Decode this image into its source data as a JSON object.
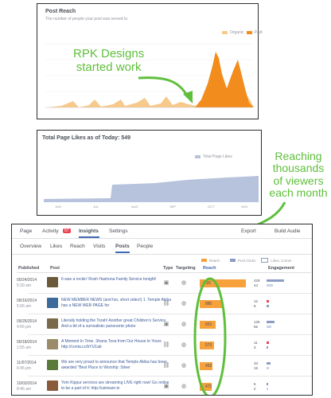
{
  "reach_chart": {
    "title": "Post Reach",
    "subtitle": "The number of people your post was served to.",
    "legend": [
      {
        "label": "Organic",
        "color": "#f7c98b"
      },
      {
        "label": "Paid",
        "color": "#f28c1c"
      }
    ],
    "colors": {
      "organic": "#f7c98b",
      "paid": "#f28c1c"
    }
  },
  "likes_chart": {
    "title": "Total Page Likes as of Today: 549",
    "legend": [
      {
        "label": "Total Page Likes",
        "color": "#b7c3dc"
      }
    ],
    "x_labels": [
      "JUN",
      "JUL",
      "AUG",
      "SEP",
      "OCT",
      "NOV"
    ],
    "colors": {
      "area": "#b7c3dc"
    }
  },
  "callouts": {
    "rpk": [
      "RPK Designs",
      "started work"
    ],
    "reaching": [
      "Reaching",
      "thousands",
      "of viewers",
      "each month"
    ]
  },
  "insights": {
    "top_tabs": {
      "page": "Page",
      "activity": "Activity",
      "activity_badge": "57",
      "likes": "Likes",
      "insights": "Insights",
      "settings": "Settings",
      "export": "Export",
      "build": "Build Audie"
    },
    "sub_tabs": [
      "Overview",
      "Likes",
      "Reach",
      "Visits",
      "Posts",
      "People"
    ],
    "active_sub_tab": "Posts",
    "reach_legend": {
      "reach": "Reach",
      "post_clicks": "Post Clicks",
      "likes_comments": "Likes, Comm"
    },
    "headers": {
      "published": "Published",
      "post": "Post",
      "type": "Type",
      "targeting": "Targeting",
      "reach": "Reach",
      "engagement": "Engagement"
    },
    "rows": [
      {
        "date": "00/24/2014",
        "time": "5:30 am",
        "text": "It was a rockin' Rosh Hashona Family Service tonight!",
        "type_icon": "photo-icon",
        "reach": "1.1K",
        "reach_level": 1.0,
        "eng_top": "429",
        "eng_bottom": "44"
      },
      {
        "date": "09/16/2014",
        "time": "5:06 am",
        "text": "NEW MEMBER NEWS (and fun, short video!) 1. Temple Akiba has a NEW WEB PAGE for",
        "type_icon": "link-icon",
        "reach": "880",
        "reach_level": 0.8,
        "eng_top": "12",
        "eng_bottom": "8"
      },
      {
        "date": "09/25/2014",
        "time": "4:56 pm",
        "text": "Literally holding the Torah! Another great Children's Service. And a bit of a surrealistic panoramic photo",
        "type_icon": "photo-icon",
        "reach": "601",
        "reach_level": 0.55,
        "eng_top": "126",
        "eng_bottom": "65"
      },
      {
        "date": "00/18/2014",
        "time": "1:55 am",
        "text": "A Moment In Time. Shana Tova from Our House to Yours http://conta.cc/bYU1ab",
        "type_icon": "link-icon",
        "reach": "570",
        "reach_level": 0.52,
        "eng_top": "11",
        "eng_bottom": "3"
      },
      {
        "date": "11/07/2014",
        "time": "6:45 pm",
        "text": "We are very proud to announce that Temple Akiba has been awarded \"Best Place to Worship: Silver",
        "type_icon": "link-icon",
        "reach": "492",
        "reach_level": 0.45,
        "eng_top": "33",
        "eng_bottom": "15"
      },
      {
        "date": "10/03/2014",
        "time": "8:46 am",
        "text": "Yom Kippur services are streaming LIVE right now! Go online to be a part of it: http://ustream.tv",
        "type_icon": "photo-icon",
        "reach": "473",
        "reach_level": 0.43,
        "eng_top": "6",
        "eng_bottom": "2"
      }
    ]
  }
}
